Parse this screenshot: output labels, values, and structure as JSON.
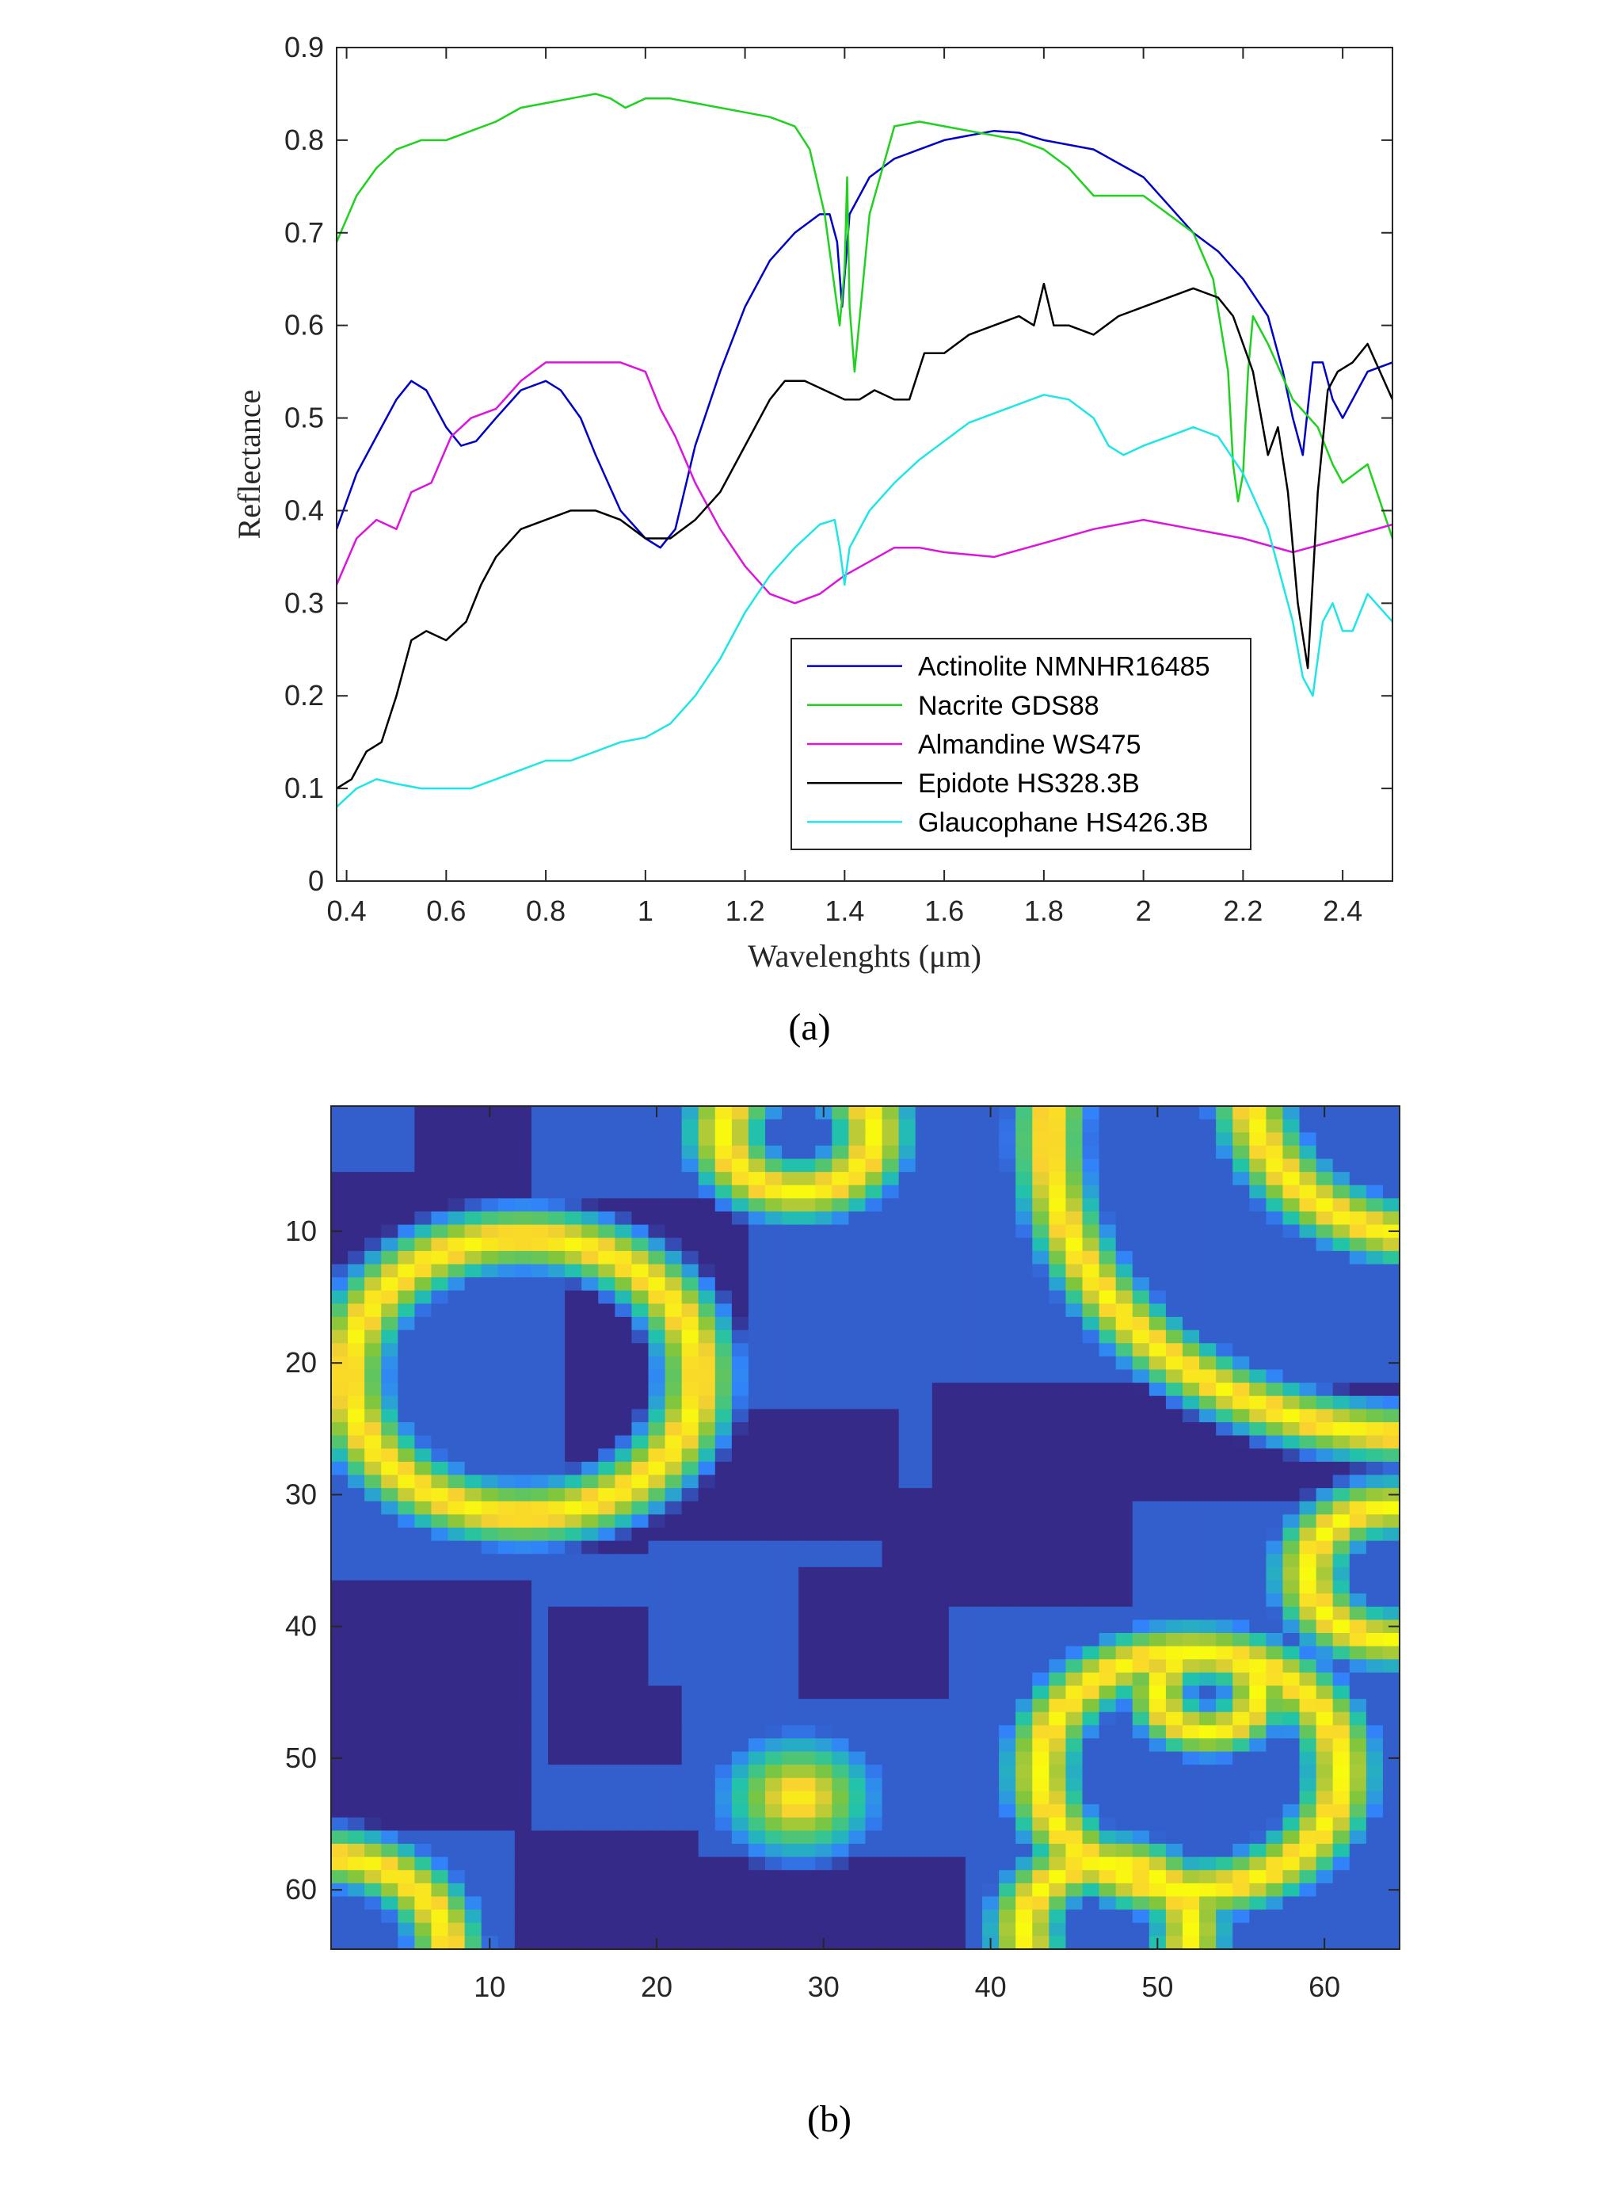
{
  "panels": {
    "a_caption": "(a)",
    "b_caption": "(b)"
  },
  "chart_data": [
    {
      "type": "line",
      "title": "",
      "xlabel": "Wavelenghts (μm)",
      "ylabel": "Reflectance",
      "xlim": [
        0.38,
        2.5
      ],
      "ylim": [
        0,
        0.9
      ],
      "x_ticks": [
        0.4,
        0.6,
        0.8,
        1,
        1.2,
        1.4,
        1.6,
        1.8,
        2,
        2.2,
        2.4
      ],
      "x_tick_labels": [
        "0.4",
        "0.6",
        "0.8",
        "1",
        "1.2",
        "1.4",
        "1.6",
        "1.8",
        "2",
        "2.2",
        "2.4"
      ],
      "y_ticks": [
        0,
        0.1,
        0.2,
        0.3,
        0.4,
        0.5,
        0.6,
        0.7,
        0.8,
        0.9
      ],
      "y_tick_labels": [
        "0",
        "0.1",
        "0.2",
        "0.3",
        "0.4",
        "0.5",
        "0.6",
        "0.7",
        "0.8",
        "0.9"
      ],
      "grid": false,
      "legend_position": "bottom-right",
      "series": [
        {
          "name": "Actinolite NMNHR16485",
          "color": "#0000c8",
          "x": [
            0.38,
            0.42,
            0.46,
            0.5,
            0.53,
            0.56,
            0.6,
            0.63,
            0.66,
            0.7,
            0.75,
            0.8,
            0.83,
            0.87,
            0.9,
            0.95,
            1.0,
            1.03,
            1.06,
            1.1,
            1.15,
            1.2,
            1.25,
            1.3,
            1.35,
            1.37,
            1.385,
            1.395,
            1.41,
            1.45,
            1.5,
            1.55,
            1.6,
            1.65,
            1.7,
            1.75,
            1.8,
            1.9,
            2.0,
            2.05,
            2.1,
            2.15,
            2.2,
            2.25,
            2.28,
            2.3,
            2.32,
            2.34,
            2.36,
            2.38,
            2.4,
            2.45,
            2.5
          ],
          "y": [
            0.38,
            0.44,
            0.48,
            0.52,
            0.54,
            0.53,
            0.49,
            0.47,
            0.475,
            0.5,
            0.53,
            0.54,
            0.53,
            0.5,
            0.46,
            0.4,
            0.37,
            0.36,
            0.38,
            0.47,
            0.55,
            0.62,
            0.67,
            0.7,
            0.72,
            0.72,
            0.69,
            0.62,
            0.72,
            0.76,
            0.78,
            0.79,
            0.8,
            0.805,
            0.81,
            0.808,
            0.8,
            0.79,
            0.76,
            0.73,
            0.7,
            0.68,
            0.65,
            0.61,
            0.55,
            0.5,
            0.46,
            0.56,
            0.56,
            0.52,
            0.5,
            0.55,
            0.56
          ]
        },
        {
          "name": "Nacrite GDS88",
          "color": "#1ed21e",
          "x": [
            0.38,
            0.42,
            0.46,
            0.5,
            0.55,
            0.6,
            0.65,
            0.7,
            0.75,
            0.8,
            0.85,
            0.9,
            0.93,
            0.96,
            1.0,
            1.05,
            1.1,
            1.15,
            1.2,
            1.25,
            1.3,
            1.33,
            1.36,
            1.38,
            1.39,
            1.4,
            1.405,
            1.41,
            1.42,
            1.45,
            1.5,
            1.55,
            1.6,
            1.65,
            1.7,
            1.75,
            1.8,
            1.85,
            1.9,
            1.95,
            2.0,
            2.05,
            2.1,
            2.14,
            2.17,
            2.18,
            2.19,
            2.2,
            2.21,
            2.22,
            2.25,
            2.3,
            2.35,
            2.38,
            2.4,
            2.45,
            2.5
          ],
          "y": [
            0.69,
            0.74,
            0.77,
            0.79,
            0.8,
            0.8,
            0.81,
            0.82,
            0.835,
            0.84,
            0.845,
            0.85,
            0.845,
            0.835,
            0.845,
            0.845,
            0.84,
            0.835,
            0.83,
            0.825,
            0.815,
            0.79,
            0.72,
            0.64,
            0.6,
            0.66,
            0.76,
            0.62,
            0.55,
            0.72,
            0.815,
            0.82,
            0.815,
            0.81,
            0.805,
            0.8,
            0.79,
            0.77,
            0.74,
            0.74,
            0.74,
            0.72,
            0.7,
            0.65,
            0.55,
            0.45,
            0.41,
            0.44,
            0.55,
            0.61,
            0.58,
            0.52,
            0.49,
            0.45,
            0.43,
            0.45,
            0.37
          ]
        },
        {
          "name": "Almandine WS475",
          "color": "#dc14dc",
          "x": [
            0.38,
            0.42,
            0.46,
            0.5,
            0.53,
            0.57,
            0.61,
            0.65,
            0.7,
            0.75,
            0.8,
            0.85,
            0.9,
            0.95,
            1.0,
            1.03,
            1.06,
            1.1,
            1.15,
            1.2,
            1.25,
            1.3,
            1.35,
            1.4,
            1.45,
            1.5,
            1.55,
            1.6,
            1.7,
            1.8,
            1.9,
            2.0,
            2.1,
            2.2,
            2.3,
            2.4,
            2.5
          ],
          "y": [
            0.32,
            0.37,
            0.39,
            0.38,
            0.42,
            0.43,
            0.48,
            0.5,
            0.51,
            0.54,
            0.56,
            0.56,
            0.56,
            0.56,
            0.55,
            0.51,
            0.48,
            0.43,
            0.38,
            0.34,
            0.31,
            0.3,
            0.31,
            0.33,
            0.345,
            0.36,
            0.36,
            0.355,
            0.35,
            0.365,
            0.38,
            0.39,
            0.38,
            0.37,
            0.355,
            0.37,
            0.385
          ]
        },
        {
          "name": "Epidote HS328.3B",
          "color": "#000000",
          "x": [
            0.38,
            0.41,
            0.44,
            0.47,
            0.5,
            0.53,
            0.56,
            0.6,
            0.64,
            0.67,
            0.7,
            0.75,
            0.8,
            0.85,
            0.9,
            0.95,
            1.0,
            1.05,
            1.1,
            1.15,
            1.2,
            1.25,
            1.28,
            1.32,
            1.36,
            1.4,
            1.43,
            1.46,
            1.5,
            1.53,
            1.56,
            1.6,
            1.65,
            1.7,
            1.75,
            1.78,
            1.8,
            1.82,
            1.85,
            1.9,
            1.95,
            2.0,
            2.05,
            2.1,
            2.15,
            2.18,
            2.22,
            2.25,
            2.27,
            2.29,
            2.31,
            2.33,
            2.35,
            2.37,
            2.39,
            2.42,
            2.45,
            2.5
          ],
          "y": [
            0.1,
            0.11,
            0.14,
            0.15,
            0.2,
            0.26,
            0.27,
            0.26,
            0.28,
            0.32,
            0.35,
            0.38,
            0.39,
            0.4,
            0.4,
            0.39,
            0.37,
            0.37,
            0.39,
            0.42,
            0.47,
            0.52,
            0.54,
            0.54,
            0.53,
            0.52,
            0.52,
            0.53,
            0.52,
            0.52,
            0.57,
            0.57,
            0.59,
            0.6,
            0.61,
            0.6,
            0.645,
            0.6,
            0.6,
            0.59,
            0.61,
            0.62,
            0.63,
            0.64,
            0.63,
            0.61,
            0.55,
            0.46,
            0.49,
            0.42,
            0.3,
            0.23,
            0.42,
            0.53,
            0.55,
            0.56,
            0.58,
            0.52
          ]
        },
        {
          "name": "Glaucophane HS426.3B",
          "color": "#1ee6e6",
          "x": [
            0.38,
            0.42,
            0.46,
            0.5,
            0.55,
            0.6,
            0.65,
            0.7,
            0.75,
            0.8,
            0.85,
            0.9,
            0.95,
            1.0,
            1.05,
            1.1,
            1.15,
            1.2,
            1.25,
            1.3,
            1.35,
            1.38,
            1.39,
            1.4,
            1.41,
            1.45,
            1.5,
            1.55,
            1.6,
            1.65,
            1.7,
            1.75,
            1.8,
            1.85,
            1.9,
            1.93,
            1.96,
            2.0,
            2.05,
            2.1,
            2.15,
            2.2,
            2.25,
            2.28,
            2.3,
            2.32,
            2.34,
            2.36,
            2.38,
            2.4,
            2.42,
            2.45,
            2.5
          ],
          "y": [
            0.08,
            0.1,
            0.11,
            0.105,
            0.1,
            0.1,
            0.1,
            0.11,
            0.12,
            0.13,
            0.13,
            0.14,
            0.15,
            0.155,
            0.17,
            0.2,
            0.24,
            0.29,
            0.33,
            0.36,
            0.385,
            0.39,
            0.36,
            0.32,
            0.36,
            0.4,
            0.43,
            0.455,
            0.475,
            0.495,
            0.505,
            0.515,
            0.525,
            0.52,
            0.5,
            0.47,
            0.46,
            0.47,
            0.48,
            0.49,
            0.48,
            0.44,
            0.38,
            0.32,
            0.28,
            0.22,
            0.2,
            0.28,
            0.3,
            0.27,
            0.27,
            0.31,
            0.28
          ]
        }
      ]
    },
    {
      "type": "heatmap",
      "title": "",
      "xlabel": "",
      "ylabel": "",
      "xlim": [
        0.5,
        64.5
      ],
      "ylim": [
        0.5,
        64.5
      ],
      "y_reversed": true,
      "x_ticks": [
        10,
        20,
        30,
        40,
        50,
        60
      ],
      "x_tick_labels": [
        "10",
        "20",
        "30",
        "40",
        "50",
        "60"
      ],
      "y_ticks": [
        10,
        20,
        30,
        40,
        50,
        60
      ],
      "y_tick_labels": [
        "10",
        "20",
        "30",
        "40",
        "50",
        "60"
      ],
      "colormap": "parula",
      "colorbar": false,
      "colormap_colors": [
        "#352a87",
        "#3282fa",
        "#21c4a8",
        "#81c63c",
        "#f9d130",
        "#f9fb0e"
      ],
      "regions": [
        {
          "shape": "base",
          "level": 0.12
        },
        {
          "shape": "rect",
          "x0": 6,
          "x1": 12,
          "y0": 1,
          "y1": 10,
          "level": 0
        },
        {
          "shape": "rect",
          "x0": 1,
          "x1": 9,
          "y0": 6,
          "y1": 12,
          "level": 0
        },
        {
          "shape": "rect",
          "x0": 15,
          "x1": 25,
          "y0": 8,
          "y1": 34,
          "level": 0
        },
        {
          "shape": "rect",
          "x0": 25,
          "x1": 34,
          "y0": 24,
          "y1": 33,
          "level": 0
        },
        {
          "shape": "rect",
          "x0": 37,
          "x1": 65,
          "y0": 22,
          "y1": 30,
          "level": 0
        },
        {
          "shape": "rect",
          "x0": 34,
          "x1": 48,
          "y0": 30,
          "y1": 38,
          "level": 0
        },
        {
          "shape": "rect",
          "x0": 1,
          "x1": 12,
          "y0": 37,
          "y1": 55,
          "level": 0
        },
        {
          "shape": "rect",
          "x0": 14,
          "x1": 21,
          "y0": 39,
          "y1": 50,
          "level": 0
        },
        {
          "shape": "rect",
          "x0": 12,
          "x1": 22,
          "y0": 56,
          "y1": 65,
          "level": 0
        },
        {
          "shape": "rect",
          "x0": 23,
          "x1": 38,
          "y0": 58,
          "y1": 65,
          "level": 0
        },
        {
          "shape": "rect",
          "x0": 29,
          "x1": 37,
          "y0": 36,
          "y1": 45,
          "level": 0
        },
        {
          "shape": "rect",
          "x0": 20,
          "x1": 26,
          "y0": 34,
          "y1": 44,
          "level": 0.12
        },
        {
          "shape": "rect",
          "x0": 26,
          "x1": 32,
          "y0": 12,
          "y1": 22,
          "level": 0.12
        },
        {
          "shape": "ring",
          "cx": 28.5,
          "cy": 2.5,
          "r": 4.5,
          "w": 3.2,
          "level": 1
        },
        {
          "shape": "ring",
          "cx": 12,
          "cy": 21,
          "r": 10.5,
          "w": 3.2,
          "level": 1
        },
        {
          "shape": "ring",
          "cx": 67,
          "cy": -1,
          "r": 11.5,
          "w": 3.2,
          "level": 1
        },
        {
          "shape": "ring",
          "cx": 66,
          "cy": 3,
          "r": 22.5,
          "w": 3.0,
          "level": 1
        },
        {
          "shape": "blob",
          "cx": 28.5,
          "cy": 53,
          "r": 6,
          "level": 1
        },
        {
          "shape": "ring",
          "cx": 53,
          "cy": 45,
          "r": 3,
          "w": 2.6,
          "level": 1
        },
        {
          "shape": "ring",
          "cx": 64,
          "cy": 36,
          "r": 5,
          "w": 3,
          "level": 1
        },
        {
          "shape": "ring",
          "cx": 52,
          "cy": 51,
          "r": 9,
          "w": 3,
          "level": 1
        },
        {
          "shape": "ring",
          "cx": 0,
          "cy": 65,
          "r": 7.5,
          "w": 3,
          "level": 1
        },
        {
          "shape": "ring",
          "cx": 47,
          "cy": 63,
          "r": 5,
          "w": 3,
          "level": 1
        }
      ]
    }
  ]
}
